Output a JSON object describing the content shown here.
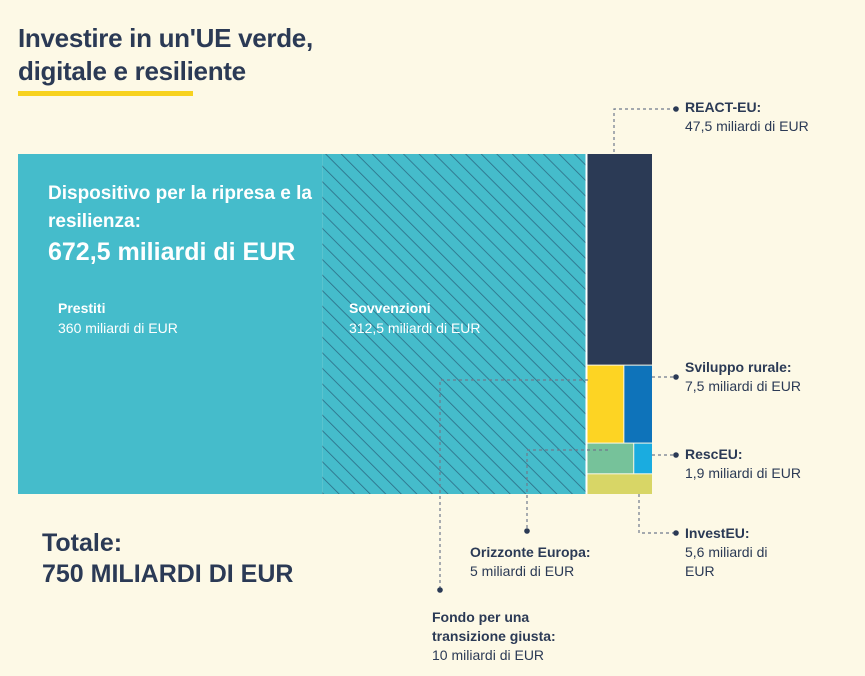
{
  "title_line1": "Investire in un'UE verde,",
  "title_line2": "digitale e resiliente",
  "total_label": "Totale:",
  "total_value": "750 MILIARDI DI EUR",
  "chart_data": {
    "type": "treemap",
    "unit": "miliardi di EUR",
    "total": 750,
    "main": {
      "name": "Dispositivo per la ripresa e la resilienza:",
      "value_label": "672,5 miliardi di EUR",
      "value": 672.5,
      "parts": [
        {
          "name": "Prestiti",
          "value": 360,
          "value_label": "360 miliardi di EUR",
          "color": "#45bccb",
          "pattern": "solid"
        },
        {
          "name": "Sovvenzioni",
          "value": 312.5,
          "value_label": "312,5 miliardi di EUR",
          "color": "#45bccb",
          "pattern": "hatched"
        }
      ]
    },
    "others": [
      {
        "name": "REACT-EU:",
        "value": 47.5,
        "value_label": "47,5 miliardi di EUR",
        "color": "#2b3a55"
      },
      {
        "name": "Fondo per una transizione giusta:",
        "value": 10,
        "value_label": "10 miliardi di EUR",
        "color": "#fdd423"
      },
      {
        "name": "Sviluppo rurale:",
        "value": 7.5,
        "value_label": "7,5 miliardi di EUR",
        "color": "#0e73ba"
      },
      {
        "name": "Orizzonte Europa:",
        "value": 5,
        "value_label": "5 miliardi di EUR",
        "color": "#76c29a"
      },
      {
        "name": "RescEU:",
        "value": 1.9,
        "value_label": "1,9 miliardi di EUR",
        "color": "#1aace0"
      },
      {
        "name": "InvestEU:",
        "value": 5.6,
        "value_label": "5,6 miliardi di EUR",
        "color": "#d8d666"
      }
    ]
  }
}
